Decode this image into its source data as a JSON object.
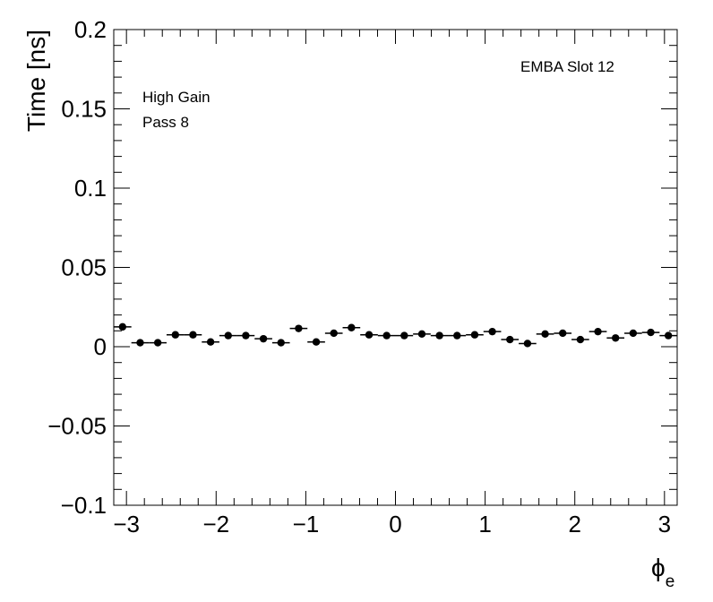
{
  "chart_data": {
    "type": "scatter",
    "ylabel": "Time [ns]",
    "xlabel": "ϕ",
    "xlabel_sub": "e",
    "xlim": [
      -3.14159,
      3.14159
    ],
    "ylim": [
      -0.1,
      0.2
    ],
    "xticks": [
      -3,
      -2,
      -1,
      0,
      1,
      2,
      3
    ],
    "xtick_labels": [
      "−3",
      "−2",
      "−1",
      "0",
      "1",
      "2",
      "3"
    ],
    "yticks": [
      -0.1,
      -0.05,
      0,
      0.05,
      0.1,
      0.15,
      0.2
    ],
    "ytick_labels": [
      "−0.1",
      "−0.05",
      "0",
      "0.05",
      "0.1",
      "0.15",
      "0.2"
    ],
    "annotations": [
      "EMBA Slot 12",
      "High Gain",
      "Pass 8"
    ],
    "grid": false,
    "marker_color": "#000000",
    "series": [
      {
        "x": [
          -3.0434,
          -2.8471,
          -2.6507,
          -2.4544,
          -2.258,
          -2.0617,
          -1.8653,
          -1.669,
          -1.4726,
          -1.2763,
          -1.0799,
          -0.8836,
          -0.6872,
          -0.4909,
          -0.2945,
          -0.0982,
          0.0982,
          0.2945,
          0.4909,
          0.6872,
          0.8836,
          1.0799,
          1.2763,
          1.4726,
          1.669,
          1.8653,
          2.0617,
          2.258,
          2.4544,
          2.6507,
          2.8471,
          3.0434
        ],
        "y": [
          0.0125,
          0.0025,
          0.0025,
          0.0075,
          0.0075,
          0.003,
          0.007,
          0.007,
          0.005,
          0.0025,
          0.0115,
          0.003,
          0.0085,
          0.012,
          0.0075,
          0.007,
          0.007,
          0.008,
          0.007,
          0.007,
          0.0075,
          0.0095,
          0.0045,
          0.002,
          0.008,
          0.0085,
          0.0045,
          0.0095,
          0.0055,
          0.0085,
          0.009,
          0.007
        ]
      }
    ]
  }
}
